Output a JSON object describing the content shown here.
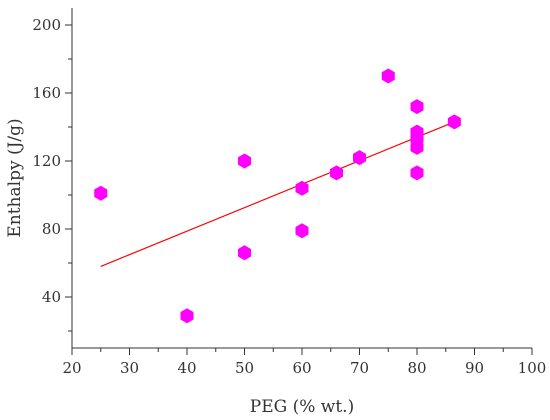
{
  "chart_data": {
    "type": "scatter",
    "xlabel": "PEG (% wt.)",
    "ylabel": "Enthalpy (J/g)",
    "xlim": [
      20,
      100
    ],
    "ylim": [
      10,
      210
    ],
    "x_ticks": [
      20,
      30,
      40,
      50,
      60,
      70,
      80,
      90,
      100
    ],
    "y_ticks": [
      40,
      80,
      120,
      160,
      200
    ],
    "grid": false,
    "legend": "none",
    "marker": "hexagon",
    "marker_color": "#ff00ff",
    "trendline_color": "#ff0000",
    "series": [
      {
        "points": [
          {
            "x": 25,
            "y": 101
          },
          {
            "x": 40,
            "y": 29
          },
          {
            "x": 50,
            "y": 120
          },
          {
            "x": 50,
            "y": 66
          },
          {
            "x": 60,
            "y": 104
          },
          {
            "x": 60,
            "y": 79
          },
          {
            "x": 66,
            "y": 113
          },
          {
            "x": 70,
            "y": 122
          },
          {
            "x": 75,
            "y": 170
          },
          {
            "x": 80,
            "y": 152
          },
          {
            "x": 80,
            "y": 137
          },
          {
            "x": 80,
            "y": 133
          },
          {
            "x": 80,
            "y": 128
          },
          {
            "x": 80,
            "y": 113
          },
          {
            "x": 86.5,
            "y": 143
          }
        ]
      }
    ],
    "trendline": {
      "x": [
        25,
        86.5
      ],
      "y": [
        58,
        143
      ]
    }
  }
}
